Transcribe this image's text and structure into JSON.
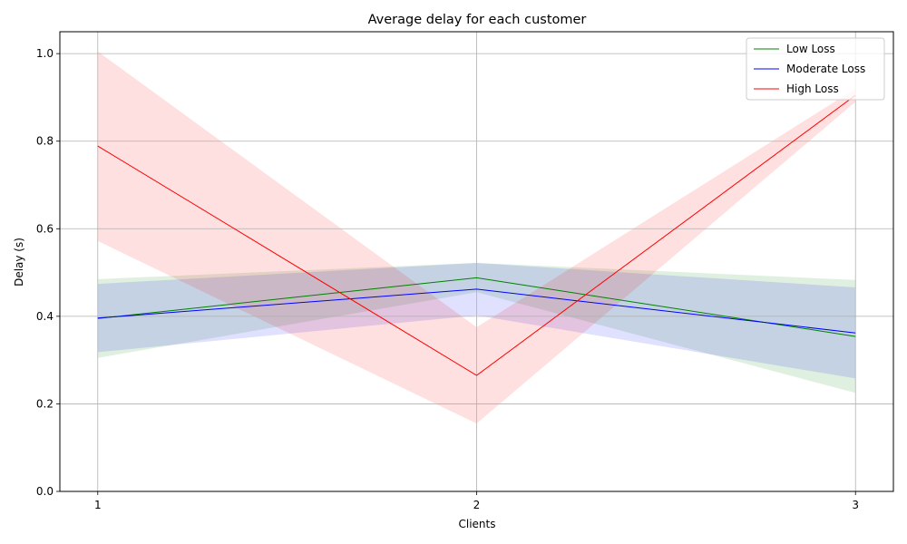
{
  "chart_data": {
    "type": "line",
    "title": "Average delay for each customer",
    "xlabel": "Clients",
    "ylabel": "Delay (s)",
    "x": [
      1,
      2,
      3
    ],
    "x_tick_labels": [
      "1",
      "2",
      "3"
    ],
    "y_ticks": [
      0.0,
      0.2,
      0.4,
      0.6,
      0.8,
      1.0
    ],
    "y_tick_labels": [
      "0.0",
      "0.2",
      "0.4",
      "0.6",
      "0.8",
      "1.0"
    ],
    "xlim": [
      0.9,
      3.1
    ],
    "ylim": [
      0.0,
      1.05
    ],
    "grid": true,
    "legend_position": "top-right",
    "series": [
      {
        "name": "Low Loss",
        "color": "#008000",
        "values": [
          0.395,
          0.488,
          0.354
        ],
        "band_low": [
          0.305,
          0.455,
          0.225
        ],
        "band_high": [
          0.485,
          0.522,
          0.483
        ]
      },
      {
        "name": "Moderate Loss",
        "color": "#0000ff",
        "values": [
          0.396,
          0.462,
          0.362
        ],
        "band_low": [
          0.318,
          0.402,
          0.258
        ],
        "band_high": [
          0.474,
          0.522,
          0.466
        ]
      },
      {
        "name": "High Loss",
        "color": "#ff0000",
        "values": [
          0.789,
          0.265,
          0.905
        ],
        "band_low": [
          0.572,
          0.155,
          0.89
        ],
        "band_high": [
          1.005,
          0.375,
          0.92
        ]
      }
    ]
  }
}
